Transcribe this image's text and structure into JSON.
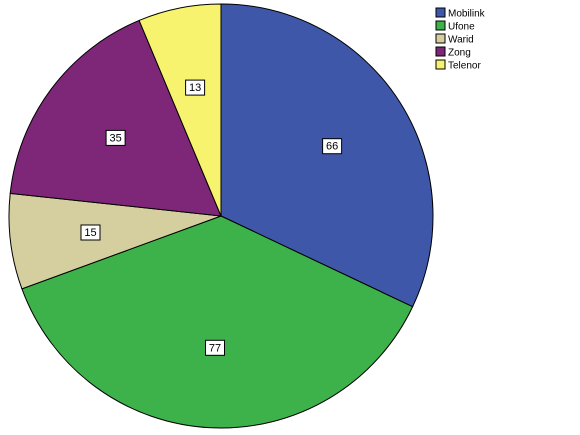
{
  "chart_data": {
    "type": "pie",
    "categories": [
      "Mobilink",
      "Ufone",
      "Warid",
      "Zong",
      "Telenor"
    ],
    "values": [
      66,
      77,
      15,
      35,
      13
    ],
    "colors": [
      "#3F57A8",
      "#3DB14A",
      "#D5CFA0",
      "#7E2779",
      "#F7F36E"
    ],
    "start": "12 o'clock",
    "direction": "clockwise",
    "legend_position": "top-right",
    "title": "",
    "xlabel": "",
    "ylabel": ""
  }
}
